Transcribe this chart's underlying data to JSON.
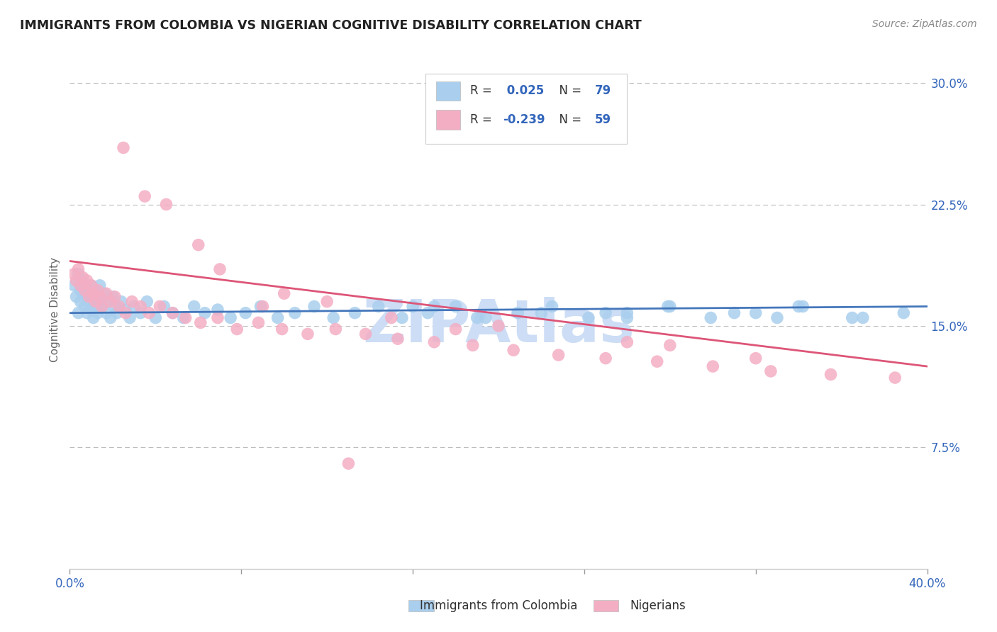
{
  "title": "IMMIGRANTS FROM COLOMBIA VS NIGERIAN COGNITIVE DISABILITY CORRELATION CHART",
  "source_text": "Source: ZipAtlas.com",
  "ylabel": "Cognitive Disability",
  "xlim": [
    0.0,
    0.4
  ],
  "ylim": [
    0.0,
    0.32
  ],
  "xticks": [
    0.0,
    0.08,
    0.16,
    0.24,
    0.32,
    0.4
  ],
  "xticklabels": [
    "0.0%",
    "",
    "",
    "",
    "",
    ""
  ],
  "yticks": [
    0.075,
    0.15,
    0.225,
    0.3
  ],
  "yticklabels": [
    "7.5%",
    "15.0%",
    "22.5%",
    "30.0%"
  ],
  "colombia_R": 0.025,
  "colombia_N": 79,
  "nigeria_R": -0.239,
  "nigeria_N": 59,
  "colombia_color": "#aacfee",
  "nigeria_color": "#f4aec4",
  "colombia_line_color": "#4477bb",
  "nigeria_line_color": "#dd5577",
  "title_color": "#222222",
  "axis_color": "#3366bb",
  "watermark_color": "#ccddf5",
  "background_color": "#ffffff",
  "grid_color": "#bbbbbb",
  "colombia_x": [
    0.002,
    0.003,
    0.004,
    0.004,
    0.005,
    0.005,
    0.006,
    0.006,
    0.007,
    0.007,
    0.008,
    0.008,
    0.009,
    0.009,
    0.01,
    0.01,
    0.011,
    0.011,
    0.012,
    0.012,
    0.013,
    0.013,
    0.014,
    0.014,
    0.015,
    0.016,
    0.017,
    0.018,
    0.019,
    0.02,
    0.021,
    0.022,
    0.024,
    0.026,
    0.028,
    0.03,
    0.033,
    0.036,
    0.04,
    0.044,
    0.048,
    0.053,
    0.058,
    0.063,
    0.069,
    0.075,
    0.082,
    0.089,
    0.097,
    0.105,
    0.114,
    0.123,
    0.133,
    0.144,
    0.155,
    0.167,
    0.18,
    0.194,
    0.209,
    0.225,
    0.242,
    0.26,
    0.279,
    0.299,
    0.32,
    0.342,
    0.365,
    0.389,
    0.17,
    0.22,
    0.26,
    0.31,
    0.34,
    0.37,
    0.16,
    0.19,
    0.25,
    0.28,
    0.33
  ],
  "colombia_y": [
    0.175,
    0.168,
    0.182,
    0.158,
    0.172,
    0.165,
    0.17,
    0.178,
    0.162,
    0.175,
    0.168,
    0.158,
    0.172,
    0.165,
    0.16,
    0.175,
    0.168,
    0.155,
    0.172,
    0.162,
    0.168,
    0.158,
    0.165,
    0.175,
    0.162,
    0.17,
    0.158,
    0.165,
    0.155,
    0.168,
    0.162,
    0.158,
    0.165,
    0.16,
    0.155,
    0.162,
    0.158,
    0.165,
    0.155,
    0.162,
    0.158,
    0.155,
    0.162,
    0.158,
    0.16,
    0.155,
    0.158,
    0.162,
    0.155,
    0.158,
    0.162,
    0.155,
    0.158,
    0.162,
    0.155,
    0.158,
    0.162,
    0.155,
    0.158,
    0.162,
    0.155,
    0.158,
    0.162,
    0.155,
    0.158,
    0.162,
    0.155,
    0.158,
    0.162,
    0.158,
    0.155,
    0.158,
    0.162,
    0.155,
    0.162,
    0.155,
    0.158,
    0.162,
    0.155
  ],
  "nigeria_x": [
    0.002,
    0.003,
    0.004,
    0.005,
    0.006,
    0.007,
    0.008,
    0.009,
    0.01,
    0.011,
    0.012,
    0.013,
    0.014,
    0.015,
    0.017,
    0.019,
    0.021,
    0.023,
    0.026,
    0.029,
    0.033,
    0.037,
    0.042,
    0.048,
    0.054,
    0.061,
    0.069,
    0.078,
    0.088,
    0.099,
    0.111,
    0.124,
    0.138,
    0.153,
    0.17,
    0.188,
    0.207,
    0.228,
    0.25,
    0.274,
    0.3,
    0.327,
    0.355,
    0.385,
    0.1,
    0.15,
    0.06,
    0.035,
    0.025,
    0.07,
    0.12,
    0.2,
    0.28,
    0.32,
    0.26,
    0.18,
    0.09,
    0.045,
    0.13
  ],
  "nigeria_y": [
    0.182,
    0.178,
    0.185,
    0.175,
    0.18,
    0.172,
    0.178,
    0.168,
    0.175,
    0.17,
    0.165,
    0.172,
    0.168,
    0.162,
    0.17,
    0.165,
    0.168,
    0.162,
    0.158,
    0.165,
    0.162,
    0.158,
    0.162,
    0.158,
    0.155,
    0.152,
    0.155,
    0.148,
    0.152,
    0.148,
    0.145,
    0.148,
    0.145,
    0.142,
    0.14,
    0.138,
    0.135,
    0.132,
    0.13,
    0.128,
    0.125,
    0.122,
    0.12,
    0.118,
    0.17,
    0.155,
    0.2,
    0.23,
    0.26,
    0.185,
    0.165,
    0.15,
    0.138,
    0.13,
    0.14,
    0.148,
    0.162,
    0.225,
    0.065
  ],
  "colombia_line_x": [
    0.0,
    0.4
  ],
  "colombia_line_y": [
    0.158,
    0.162
  ],
  "nigeria_line_x": [
    0.0,
    0.4
  ],
  "nigeria_line_y": [
    0.19,
    0.125
  ]
}
